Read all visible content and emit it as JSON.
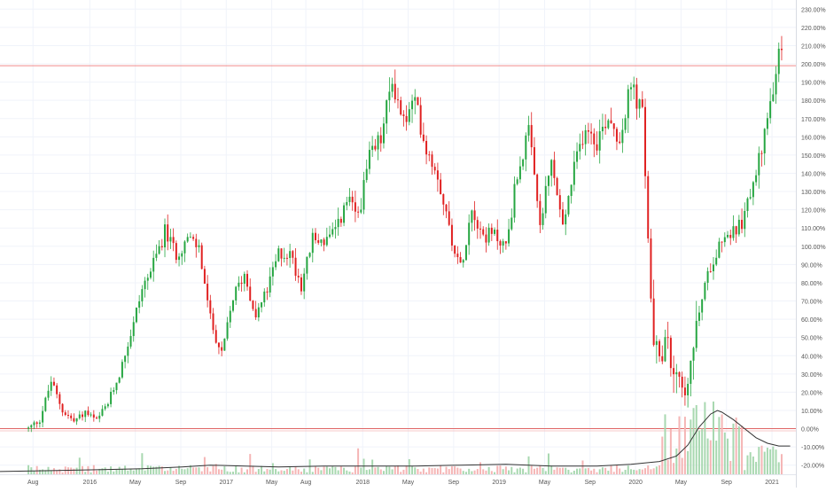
{
  "chart_data": {
    "type": "candlestick",
    "y_axis": {
      "position": "right",
      "unit": "%",
      "range": [
        -25,
        235
      ],
      "ticks": [
        "230.00%",
        "220.00%",
        "210.00%",
        "200.00%",
        "190.00%",
        "180.00%",
        "170.00%",
        "160.00%",
        "150.00%",
        "140.00%",
        "130.00%",
        "120.00%",
        "110.00%",
        "100.00%",
        "90.00%",
        "80.00%",
        "70.00%",
        "60.00%",
        "50.00%",
        "40.00%",
        "30.00%",
        "20.00%",
        "10.00%",
        "0.00%",
        "-10.00%",
        "-20.00%"
      ],
      "tick_values": [
        230,
        220,
        210,
        200,
        190,
        180,
        170,
        160,
        150,
        140,
        130,
        120,
        110,
        100,
        90,
        80,
        70,
        60,
        50,
        40,
        30,
        20,
        10,
        0,
        -10,
        -20
      ]
    },
    "x_axis": {
      "ticks": [
        {
          "label": "Aug",
          "t": 0.4
        },
        {
          "label": "2016",
          "t": 5.4
        },
        {
          "label": "May",
          "t": 9.4
        },
        {
          "label": "Sep",
          "t": 13.4
        },
        {
          "label": "2017",
          "t": 17.4
        },
        {
          "label": "May",
          "t": 21.4
        },
        {
          "label": "Aug",
          "t": 24.4
        },
        {
          "label": "2018",
          "t": 29.4
        },
        {
          "label": "May",
          "t": 33.4
        },
        {
          "label": "Sep",
          "t": 37.4
        },
        {
          "label": "2019",
          "t": 41.4
        },
        {
          "label": "May",
          "t": 45.4
        },
        {
          "label": "Sep",
          "t": 49.4
        },
        {
          "label": "2020",
          "t": 53.4
        },
        {
          "label": "May",
          "t": 57.4
        },
        {
          "label": "Sep",
          "t": 61.4
        },
        {
          "label": "2021",
          "t": 65.4
        }
      ],
      "range_months": [
        -2.5,
        67.5
      ]
    },
    "reference_lines": [
      {
        "value": 199,
        "color": "#f28b8b"
      },
      {
        "value": 0,
        "color": "#e06666"
      }
    ],
    "price_path": [
      [
        0,
        0
      ],
      [
        1,
        5
      ],
      [
        2,
        26
      ],
      [
        3,
        10
      ],
      [
        4,
        4
      ],
      [
        5,
        9
      ],
      [
        6,
        4
      ],
      [
        7,
        14
      ],
      [
        8,
        30
      ],
      [
        9,
        52
      ],
      [
        10,
        77
      ],
      [
        11,
        90
      ],
      [
        12,
        108
      ],
      [
        13,
        96
      ],
      [
        14,
        104
      ],
      [
        15,
        99
      ],
      [
        16,
        60
      ],
      [
        17,
        40
      ],
      [
        18,
        72
      ],
      [
        19,
        85
      ],
      [
        20,
        62
      ],
      [
        21,
        76
      ],
      [
        22,
        96
      ],
      [
        23,
        96
      ],
      [
        24,
        79
      ],
      [
        25,
        104
      ],
      [
        26,
        103
      ],
      [
        27,
        107
      ],
      [
        28,
        125
      ],
      [
        29,
        117
      ],
      [
        30,
        148
      ],
      [
        31,
        159
      ],
      [
        32,
        191
      ],
      [
        33,
        168
      ],
      [
        34,
        179
      ],
      [
        35,
        154
      ],
      [
        36,
        140
      ],
      [
        37,
        110
      ],
      [
        38,
        88
      ],
      [
        39,
        122
      ],
      [
        40,
        106
      ],
      [
        41,
        106
      ],
      [
        42,
        100
      ],
      [
        43,
        140
      ],
      [
        44,
        162
      ],
      [
        45,
        111
      ],
      [
        46,
        146
      ],
      [
        47,
        110
      ],
      [
        48,
        142
      ],
      [
        49,
        167
      ],
      [
        50,
        158
      ],
      [
        51,
        172
      ],
      [
        52,
        159
      ],
      [
        53,
        188
      ],
      [
        54,
        172
      ],
      [
        55,
        40
      ],
      [
        56,
        45
      ],
      [
        57,
        35
      ],
      [
        58,
        20
      ],
      [
        59,
        65
      ],
      [
        60,
        90
      ],
      [
        61,
        105
      ],
      [
        62,
        108
      ],
      [
        63,
        115
      ],
      [
        64,
        143
      ],
      [
        65,
        168
      ],
      [
        66,
        205
      ]
    ],
    "candle_colors": {
      "up": "#26a641",
      "down": "#e02020"
    },
    "volume": {
      "bar_colors": {
        "up": "#a8d8b0",
        "down": "#f5b5b5"
      },
      "line_color": "#333333",
      "moving_average": [
        [
          -2.5,
          1.5
        ],
        [
          2,
          2
        ],
        [
          6,
          2.5
        ],
        [
          10,
          3
        ],
        [
          13.5,
          4
        ],
        [
          16,
          5
        ],
        [
          19,
          4.5
        ],
        [
          22,
          4
        ],
        [
          26,
          4.5
        ],
        [
          30,
          4.5
        ],
        [
          34,
          4.5
        ],
        [
          38,
          5
        ],
        [
          42,
          5.5
        ],
        [
          46,
          4.5
        ],
        [
          50,
          4.5
        ],
        [
          53,
          5.5
        ],
        [
          55.5,
          7
        ],
        [
          57,
          10
        ],
        [
          58,
          16
        ],
        [
          59,
          26
        ],
        [
          60,
          33
        ],
        [
          60.6,
          35
        ],
        [
          61,
          34
        ],
        [
          62,
          30
        ],
        [
          63,
          25
        ],
        [
          64,
          20
        ],
        [
          65,
          17
        ],
        [
          66,
          15.5
        ],
        [
          67,
          15.5
        ]
      ]
    }
  }
}
